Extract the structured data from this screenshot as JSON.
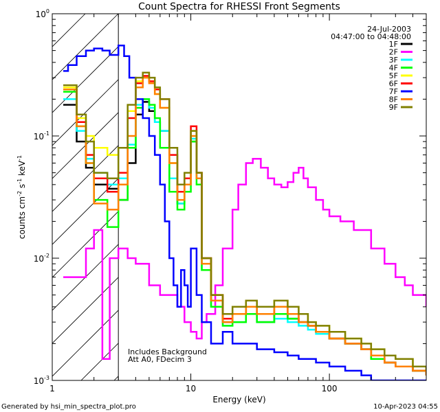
{
  "chart_data": {
    "type": "line",
    "title": "Count Spectra for RHESSI Front Segments",
    "xlabel": "Energy (keV)",
    "ylabel": "counts cm",
    "ylabel_exp1": "-2",
    "ylabel_mid": " s",
    "ylabel_exp2": "-1",
    "ylabel_end": " keV",
    "ylabel_exp3": "-1",
    "x_scale": "log",
    "y_scale": "log",
    "xlim": [
      1,
      500
    ],
    "ylim": [
      0.001,
      1
    ],
    "x_ticks": [
      {
        "value": 1,
        "label": "1"
      },
      {
        "value": 10,
        "label": "10"
      },
      {
        "value": 100,
        "label": "100"
      }
    ],
    "y_ticks": [
      {
        "value": 0.001,
        "base": "10",
        "exp": "-3"
      },
      {
        "value": 0.01,
        "base": "10",
        "exp": "-2"
      },
      {
        "value": 0.1,
        "base": "10",
        "exp": "-1"
      },
      {
        "value": 1,
        "base": "10",
        "exp": "0"
      }
    ],
    "date": "24-Jul-2003",
    "time_range": "04:47:00 to 04:48:00",
    "notes": [
      "Includes Background",
      "Att A0, FDecim 3"
    ],
    "footer_left": "Generated by hsi_min_spectra_plot.pro",
    "footer_right": "10-Apr-2023 04:55",
    "hatched_region_xmax": 3,
    "series": [
      {
        "name": "1F",
        "color": "#000000",
        "x": [
          1.2,
          1.5,
          1.75,
          2,
          2.5,
          3,
          3.5,
          4,
          4.5,
          5,
          5.5,
          6,
          7,
          8,
          9,
          10,
          11,
          12,
          14,
          17,
          20,
          25,
          30,
          40,
          50,
          60,
          70,
          80,
          100,
          130,
          170,
          200,
          250,
          300,
          400,
          500
        ],
        "values": [
          0.18,
          0.09,
          0.055,
          0.04,
          0.037,
          0.03,
          0.06,
          0.15,
          0.19,
          0.16,
          0.13,
          0.11,
          0.045,
          0.028,
          0.04,
          0.09,
          0.05,
          0.01,
          0.0045,
          0.003,
          0.0035,
          0.004,
          0.003,
          0.0035,
          0.0032,
          0.003,
          0.0028,
          0.0025,
          0.0022,
          0.002,
          0.0018,
          0.0015,
          0.0014,
          0.0013,
          0.0012,
          0.0011
        ]
      },
      {
        "name": "2F",
        "color": "#ff00ff",
        "x": [
          1.2,
          1.5,
          1.75,
          2,
          2.3,
          2.6,
          3,
          3.5,
          4,
          5,
          6,
          7,
          8,
          9,
          10,
          11,
          12,
          13,
          15,
          17,
          20,
          22,
          25,
          28,
          32,
          36,
          40,
          45,
          50,
          55,
          60,
          65,
          70,
          80,
          90,
          100,
          120,
          150,
          200,
          250,
          300,
          350,
          400,
          500
        ],
        "values": [
          0.007,
          0.007,
          0.012,
          0.017,
          0.0015,
          0.01,
          0.012,
          0.01,
          0.009,
          0.006,
          0.005,
          0.005,
          0.004,
          0.003,
          0.0025,
          0.0022,
          0.003,
          0.0035,
          0.006,
          0.012,
          0.025,
          0.04,
          0.06,
          0.065,
          0.055,
          0.045,
          0.04,
          0.038,
          0.042,
          0.05,
          0.055,
          0.045,
          0.038,
          0.03,
          0.025,
          0.022,
          0.02,
          0.017,
          0.012,
          0.009,
          0.007,
          0.006,
          0.005,
          0.004
        ]
      },
      {
        "name": "3F",
        "color": "#00ffff",
        "x": [
          1.2,
          1.5,
          1.75,
          2,
          2.5,
          3,
          3.5,
          4,
          4.5,
          5,
          5.5,
          6,
          7,
          8,
          9,
          10,
          11,
          12,
          14,
          17,
          20,
          25,
          30,
          40,
          50,
          60,
          70,
          80,
          100,
          130,
          170,
          200,
          250,
          300,
          400,
          500
        ],
        "values": [
          0.2,
          0.11,
          0.065,
          0.05,
          0.04,
          0.045,
          0.085,
          0.18,
          0.2,
          0.17,
          0.13,
          0.11,
          0.045,
          0.028,
          0.04,
          0.095,
          0.045,
          0.008,
          0.004,
          0.0028,
          0.003,
          0.0035,
          0.003,
          0.0032,
          0.003,
          0.0028,
          0.0026,
          0.0024,
          0.0022,
          0.002,
          0.0018,
          0.0016,
          0.0014,
          0.0013,
          0.0012,
          0.0011
        ]
      },
      {
        "name": "4F",
        "color": "#00ff00",
        "x": [
          1.2,
          1.5,
          1.75,
          2,
          2.5,
          3,
          3.5,
          4,
          4.5,
          5,
          5.5,
          6,
          7,
          8,
          9,
          10,
          11,
          12,
          14,
          17,
          20,
          25,
          30,
          40,
          50,
          60,
          70,
          80,
          100,
          130,
          170,
          200,
          250,
          300,
          400,
          500
        ],
        "values": [
          0.23,
          0.12,
          0.06,
          0.03,
          0.018,
          0.03,
          0.08,
          0.17,
          0.2,
          0.18,
          0.14,
          0.08,
          0.035,
          0.025,
          0.035,
          0.09,
          0.04,
          0.008,
          0.004,
          0.0028,
          0.003,
          0.0035,
          0.003,
          0.0035,
          0.0032,
          0.003,
          0.0028,
          0.0025,
          0.0022,
          0.002,
          0.0018,
          0.0015,
          0.0014,
          0.0013,
          0.0012,
          0.0011
        ]
      },
      {
        "name": "5F",
        "color": "#ffff00",
        "x": [
          1.2,
          1.5,
          1.75,
          2,
          2.5,
          3,
          3.5,
          4,
          4.5,
          5,
          5.5,
          6,
          7,
          8,
          9,
          10,
          11,
          12,
          14,
          17,
          20,
          25,
          30,
          40,
          50,
          60,
          70,
          80,
          100,
          130,
          170,
          200,
          250,
          300,
          400,
          500
        ],
        "values": [
          0.25,
          0.14,
          0.1,
          0.08,
          0.07,
          0.08,
          0.16,
          0.28,
          0.3,
          0.28,
          0.22,
          0.17,
          0.06,
          0.035,
          0.045,
          0.11,
          0.05,
          0.01,
          0.005,
          0.0035,
          0.004,
          0.0045,
          0.004,
          0.0045,
          0.004,
          0.0035,
          0.003,
          0.0028,
          0.0025,
          0.0022,
          0.002,
          0.0018,
          0.0016,
          0.0015,
          0.0013,
          0.0012
        ]
      },
      {
        "name": "6F",
        "color": "#ff0000",
        "x": [
          1.2,
          1.5,
          1.75,
          2,
          2.5,
          3,
          3.5,
          4,
          4.5,
          5,
          5.5,
          6,
          7,
          8,
          9,
          10,
          11,
          12,
          14,
          17,
          20,
          25,
          30,
          40,
          50,
          60,
          70,
          80,
          100,
          130,
          170,
          200,
          250,
          300,
          400,
          500
        ],
        "values": [
          0.24,
          0.13,
          0.07,
          0.045,
          0.035,
          0.05,
          0.14,
          0.27,
          0.31,
          0.28,
          0.24,
          0.2,
          0.07,
          0.035,
          0.045,
          0.12,
          0.05,
          0.01,
          0.005,
          0.0032,
          0.0035,
          0.004,
          0.0035,
          0.004,
          0.0035,
          0.003,
          0.0028,
          0.0025,
          0.0022,
          0.002,
          0.0018,
          0.0016,
          0.0014,
          0.0013,
          0.0012,
          0.0011
        ]
      },
      {
        "name": "7F",
        "color": "#0000ff",
        "x": [
          1.2,
          1.3,
          1.5,
          1.75,
          2,
          2.3,
          2.6,
          3,
          3.3,
          3.6,
          4,
          4.5,
          5,
          5.5,
          6,
          6.5,
          7,
          7.5,
          8,
          8.5,
          9,
          9.5,
          10,
          11,
          12,
          14,
          17,
          20,
          25,
          30,
          40,
          50,
          60,
          80,
          100,
          130,
          170,
          200,
          250,
          300,
          400,
          500
        ],
        "values": [
          0.34,
          0.38,
          0.45,
          0.5,
          0.52,
          0.5,
          0.46,
          0.55,
          0.45,
          0.3,
          0.2,
          0.14,
          0.1,
          0.07,
          0.04,
          0.02,
          0.01,
          0.006,
          0.004,
          0.008,
          0.006,
          0.004,
          0.012,
          0.005,
          0.003,
          0.002,
          0.0025,
          0.002,
          0.002,
          0.0018,
          0.0017,
          0.0016,
          0.0015,
          0.0014,
          0.0013,
          0.0012,
          0.0011,
          0.001,
          0.001,
          0.001,
          0.001,
          0.001
        ]
      },
      {
        "name": "8F",
        "color": "#ff8000",
        "x": [
          1.2,
          1.5,
          1.75,
          2,
          2.5,
          3,
          3.5,
          4,
          4.5,
          5,
          5.5,
          6,
          7,
          8,
          9,
          10,
          11,
          12,
          14,
          17,
          20,
          25,
          30,
          40,
          50,
          60,
          70,
          80,
          100,
          130,
          170,
          200,
          250,
          300,
          400,
          500
        ],
        "values": [
          0.24,
          0.12,
          0.06,
          0.028,
          0.025,
          0.04,
          0.1,
          0.25,
          0.3,
          0.27,
          0.22,
          0.17,
          0.06,
          0.03,
          0.04,
          0.1,
          0.045,
          0.009,
          0.0045,
          0.003,
          0.0035,
          0.004,
          0.0035,
          0.004,
          0.0035,
          0.003,
          0.0028,
          0.0025,
          0.0022,
          0.002,
          0.0018,
          0.0016,
          0.0014,
          0.0013,
          0.0012,
          0.0011
        ]
      },
      {
        "name": "9F",
        "color": "#808000",
        "x": [
          1.2,
          1.5,
          1.75,
          2,
          2.5,
          3,
          3.5,
          4,
          4.5,
          5,
          5.5,
          6,
          7,
          8,
          9,
          10,
          11,
          12,
          14,
          17,
          20,
          25,
          30,
          40,
          50,
          60,
          70,
          80,
          100,
          130,
          170,
          200,
          250,
          300,
          400,
          500
        ],
        "values": [
          0.26,
          0.15,
          0.09,
          0.05,
          0.045,
          0.08,
          0.18,
          0.3,
          0.33,
          0.3,
          0.25,
          0.2,
          0.08,
          0.04,
          0.05,
          0.11,
          0.05,
          0.01,
          0.005,
          0.0035,
          0.004,
          0.0045,
          0.004,
          0.0045,
          0.004,
          0.0035,
          0.003,
          0.0028,
          0.0025,
          0.0022,
          0.002,
          0.0018,
          0.0016,
          0.0015,
          0.0013,
          0.0012
        ]
      }
    ]
  }
}
